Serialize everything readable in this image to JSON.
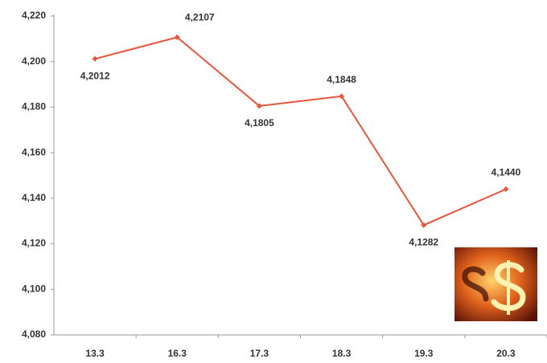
{
  "chart_data": {
    "type": "line",
    "categories": [
      "13.3",
      "16.3",
      "17.3",
      "18.3",
      "19.3",
      "20.3"
    ],
    "series": [
      {
        "color": "#e8553a",
        "values": [
          4.2012,
          4.2107,
          4.1805,
          4.1848,
          4.1282,
          4.144
        ],
        "value_labels": [
          "4,2012",
          "4,2107",
          "4,1805",
          "4,1848",
          "4,1282",
          "4,1440"
        ]
      }
    ],
    "ylim": [
      4.08,
      4.22
    ],
    "yticks": [
      {
        "value": 4.08,
        "label": "4,080"
      },
      {
        "value": 4.1,
        "label": "4,100"
      },
      {
        "value": 4.12,
        "label": "4,120"
      },
      {
        "value": 4.14,
        "label": "4,140"
      },
      {
        "value": 4.16,
        "label": "4,160"
      },
      {
        "value": 4.18,
        "label": "4,180"
      },
      {
        "value": 4.2,
        "label": "4,200"
      },
      {
        "value": 4.22,
        "label": "4,220"
      }
    ],
    "grid": false
  }
}
